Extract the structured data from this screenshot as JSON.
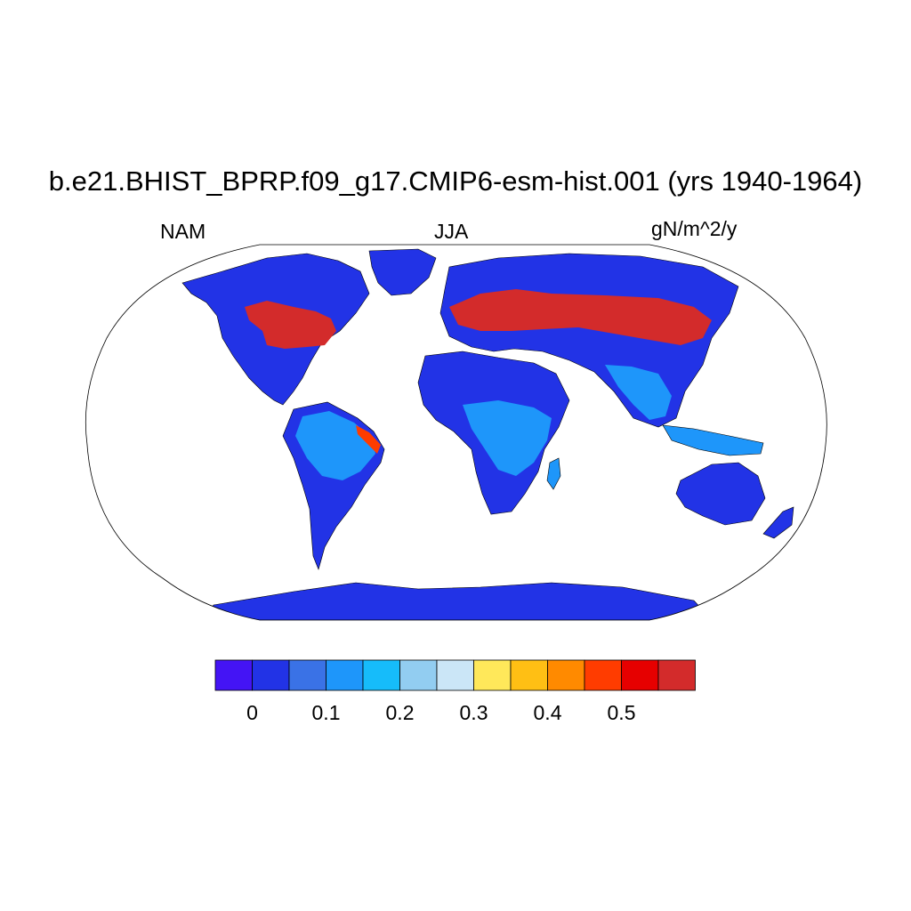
{
  "header": {
    "title": "b.e21.BHIST_BPRP.f09_g17.CMIP6-esm-hist.001 (yrs 1940-1964)",
    "region": "NAM",
    "season": "JJA",
    "units": "gN/m^2/y"
  },
  "colorbar": {
    "colors": [
      "#4414f5",
      "#2233e6",
      "#3a72e6",
      "#1e96fa",
      "#16bcfa",
      "#92cdf1",
      "#cbe6f7",
      "#ffe85a",
      "#ffbf14",
      "#ff8a00",
      "#ff3c00",
      "#e60000",
      "#d32b2b"
    ],
    "tick_labels": [
      "0",
      "0.1",
      "0.2",
      "0.3",
      "0.4",
      "0.5"
    ]
  },
  "map": {
    "projection": "Robinson",
    "land_base_color": "#2233e6",
    "high_color": "#d32b2b"
  }
}
